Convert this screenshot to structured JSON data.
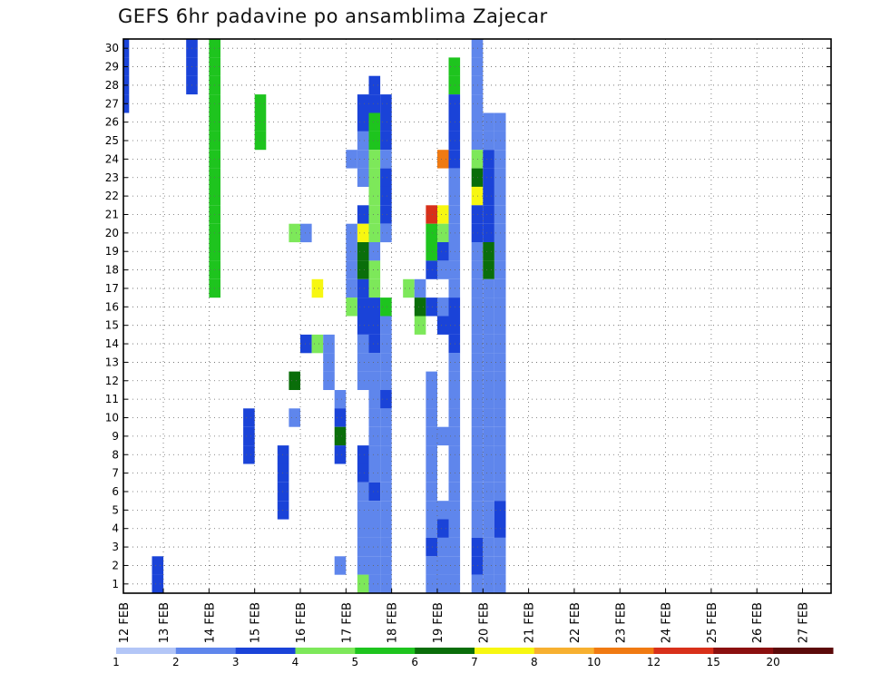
{
  "chart_data": {
    "type": "heatmap",
    "title": "GEFS 6hr padavine po ansamblima Zajecar",
    "xlabel": "",
    "ylabel": "",
    "x_ticks": [
      "12 FEB",
      "13 FEB",
      "14 FEB",
      "15 FEB",
      "16 FEB",
      "17 FEB",
      "18 FEB",
      "19 FEB",
      "20 FEB",
      "21 FEB",
      "22 FEB",
      "23 FEB",
      "24 FEB",
      "25 FEB",
      "26 FEB",
      "27 FEB"
    ],
    "y_ticks": [
      "1",
      "2",
      "3",
      "4",
      "5",
      "6",
      "7",
      "8",
      "9",
      "10",
      "11",
      "12",
      "13",
      "14",
      "15",
      "16",
      "17",
      "18",
      "19",
      "20",
      "21",
      "22",
      "23",
      "24",
      "25",
      "26",
      "27",
      "28",
      "29",
      "30"
    ],
    "x_range_steps": [
      0,
      61
    ],
    "y_range": [
      1,
      30
    ],
    "grid": true,
    "colorbar": {
      "labels": [
        "1",
        "2",
        "3",
        "4",
        "5",
        "6",
        "7",
        "8",
        "10",
        "12",
        "15",
        "20"
      ],
      "colors": [
        "#b3c6f7",
        "#5f86ec",
        "#1a43d8",
        "#7de85a",
        "#1ec41e",
        "#0a6e0a",
        "#f7f711",
        "#f7b030",
        "#f07a12",
        "#d8301a",
        "#8b0f0f",
        "#5c0a0a"
      ]
    },
    "cells": [
      [
        0,
        30,
        2
      ],
      [
        0,
        29,
        2
      ],
      [
        0,
        28,
        2
      ],
      [
        0,
        27,
        2
      ],
      [
        3,
        2,
        2
      ],
      [
        3,
        1,
        2
      ],
      [
        6,
        30,
        2
      ],
      [
        6,
        29,
        2
      ],
      [
        6,
        28,
        2
      ],
      [
        8,
        30,
        4
      ],
      [
        8,
        29,
        4
      ],
      [
        8,
        28,
        4
      ],
      [
        8,
        27,
        4
      ],
      [
        8,
        26,
        4
      ],
      [
        8,
        25,
        4
      ],
      [
        8,
        24,
        4
      ],
      [
        8,
        23,
        4
      ],
      [
        8,
        22,
        4
      ],
      [
        8,
        21,
        4
      ],
      [
        8,
        20,
        4
      ],
      [
        8,
        19,
        4
      ],
      [
        8,
        18,
        4
      ],
      [
        8,
        17,
        4
      ],
      [
        11,
        10,
        2
      ],
      [
        11,
        9,
        2
      ],
      [
        11,
        8,
        2
      ],
      [
        12,
        27,
        4
      ],
      [
        12,
        26,
        4
      ],
      [
        12,
        25,
        4
      ],
      [
        14,
        8,
        2
      ],
      [
        14,
        7,
        2
      ],
      [
        14,
        6,
        2
      ],
      [
        14,
        5,
        2
      ],
      [
        15,
        20,
        3
      ],
      [
        15,
        12,
        5
      ],
      [
        15,
        10,
        1
      ],
      [
        16,
        20,
        1
      ],
      [
        16,
        14,
        2
      ],
      [
        17,
        17,
        6
      ],
      [
        17,
        14,
        3
      ],
      [
        18,
        14,
        1
      ],
      [
        18,
        13,
        1
      ],
      [
        18,
        12,
        1
      ],
      [
        19,
        2,
        1
      ],
      [
        19,
        11,
        1
      ],
      [
        19,
        10,
        2
      ],
      [
        19,
        9,
        5
      ],
      [
        19,
        8,
        2
      ],
      [
        20,
        24,
        1
      ],
      [
        20,
        20,
        1
      ],
      [
        20,
        19,
        1
      ],
      [
        20,
        18,
        1
      ],
      [
        20,
        17,
        1
      ],
      [
        20,
        16,
        3
      ],
      [
        21,
        27,
        2
      ],
      [
        21,
        26,
        2
      ],
      [
        21,
        25,
        1
      ],
      [
        21,
        24,
        1
      ],
      [
        21,
        23,
        1
      ],
      [
        21,
        21,
        2
      ],
      [
        21,
        20,
        6
      ],
      [
        21,
        19,
        5
      ],
      [
        21,
        18,
        5
      ],
      [
        21,
        17,
        2
      ],
      [
        21,
        16,
        2
      ],
      [
        21,
        15,
        2
      ],
      [
        21,
        14,
        1
      ],
      [
        21,
        13,
        1
      ],
      [
        21,
        12,
        1
      ],
      [
        21,
        8,
        2
      ],
      [
        21,
        7,
        2
      ],
      [
        21,
        6,
        1
      ],
      [
        21,
        5,
        1
      ],
      [
        21,
        4,
        1
      ],
      [
        21,
        3,
        1
      ],
      [
        21,
        2,
        1
      ],
      [
        21,
        1,
        3
      ],
      [
        22,
        28,
        2
      ],
      [
        22,
        27,
        2
      ],
      [
        22,
        26,
        4
      ],
      [
        22,
        25,
        4
      ],
      [
        22,
        24,
        3
      ],
      [
        22,
        23,
        3
      ],
      [
        22,
        22,
        3
      ],
      [
        22,
        21,
        3
      ],
      [
        22,
        20,
        3
      ],
      [
        22,
        19,
        1
      ],
      [
        22,
        18,
        3
      ],
      [
        22,
        17,
        3
      ],
      [
        22,
        16,
        2
      ],
      [
        22,
        15,
        2
      ],
      [
        22,
        14,
        2
      ],
      [
        22,
        13,
        1
      ],
      [
        22,
        12,
        1
      ],
      [
        22,
        11,
        1
      ],
      [
        22,
        10,
        1
      ],
      [
        22,
        9,
        1
      ],
      [
        22,
        8,
        1
      ],
      [
        22,
        7,
        1
      ],
      [
        22,
        6,
        2
      ],
      [
        22,
        5,
        1
      ],
      [
        22,
        4,
        1
      ],
      [
        22,
        3,
        1
      ],
      [
        22,
        2,
        1
      ],
      [
        22,
        1,
        1
      ],
      [
        23,
        27,
        2
      ],
      [
        23,
        26,
        2
      ],
      [
        23,
        25,
        2
      ],
      [
        23,
        24,
        1
      ],
      [
        23,
        23,
        2
      ],
      [
        23,
        22,
        2
      ],
      [
        23,
        21,
        2
      ],
      [
        23,
        20,
        1
      ],
      [
        23,
        16,
        4
      ],
      [
        23,
        15,
        1
      ],
      [
        23,
        14,
        1
      ],
      [
        23,
        13,
        1
      ],
      [
        23,
        12,
        1
      ],
      [
        23,
        11,
        2
      ],
      [
        23,
        10,
        1
      ],
      [
        23,
        9,
        1
      ],
      [
        23,
        8,
        1
      ],
      [
        23,
        7,
        1
      ],
      [
        23,
        6,
        1
      ],
      [
        23,
        5,
        1
      ],
      [
        23,
        4,
        1
      ],
      [
        23,
        3,
        1
      ],
      [
        23,
        2,
        1
      ],
      [
        23,
        1,
        1
      ],
      [
        25,
        17,
        3
      ],
      [
        26,
        17,
        1
      ],
      [
        26,
        16,
        5
      ],
      [
        26,
        15,
        3
      ],
      [
        27,
        21,
        9
      ],
      [
        27,
        20,
        4
      ],
      [
        27,
        19,
        4
      ],
      [
        27,
        18,
        2
      ],
      [
        27,
        16,
        2
      ],
      [
        27,
        12,
        1
      ],
      [
        27,
        11,
        1
      ],
      [
        27,
        10,
        1
      ],
      [
        27,
        9,
        1
      ],
      [
        27,
        8,
        1
      ],
      [
        27,
        7,
        1
      ],
      [
        27,
        6,
        1
      ],
      [
        27,
        5,
        1
      ],
      [
        27,
        4,
        1
      ],
      [
        27,
        3,
        2
      ],
      [
        27,
        2,
        1
      ],
      [
        27,
        1,
        1
      ],
      [
        28,
        24,
        8
      ],
      [
        28,
        21,
        6
      ],
      [
        28,
        20,
        3
      ],
      [
        28,
        19,
        2
      ],
      [
        28,
        18,
        1
      ],
      [
        28,
        16,
        1
      ],
      [
        28,
        15,
        2
      ],
      [
        28,
        9,
        1
      ],
      [
        28,
        5,
        1
      ],
      [
        28,
        4,
        2
      ],
      [
        28,
        3,
        1
      ],
      [
        28,
        2,
        1
      ],
      [
        28,
        1,
        1
      ],
      [
        29,
        29,
        4
      ],
      [
        29,
        28,
        4
      ],
      [
        29,
        27,
        2
      ],
      [
        29,
        26,
        2
      ],
      [
        29,
        25,
        2
      ],
      [
        29,
        24,
        2
      ],
      [
        29,
        23,
        1
      ],
      [
        29,
        22,
        1
      ],
      [
        29,
        21,
        1
      ],
      [
        29,
        20,
        1
      ],
      [
        29,
        19,
        1
      ],
      [
        29,
        18,
        1
      ],
      [
        29,
        17,
        1
      ],
      [
        29,
        16,
        2
      ],
      [
        29,
        15,
        2
      ],
      [
        29,
        14,
        2
      ],
      [
        29,
        13,
        1
      ],
      [
        29,
        12,
        1
      ],
      [
        29,
        11,
        1
      ],
      [
        29,
        10,
        1
      ],
      [
        29,
        9,
        1
      ],
      [
        29,
        8,
        1
      ],
      [
        29,
        7,
        1
      ],
      [
        29,
        6,
        1
      ],
      [
        29,
        5,
        1
      ],
      [
        29,
        4,
        1
      ],
      [
        29,
        3,
        1
      ],
      [
        29,
        2,
        1
      ],
      [
        29,
        1,
        1
      ],
      [
        31,
        30,
        1
      ],
      [
        31,
        29,
        1
      ],
      [
        31,
        28,
        1
      ],
      [
        31,
        27,
        1
      ],
      [
        31,
        26,
        1
      ],
      [
        31,
        25,
        1
      ],
      [
        31,
        24,
        3
      ],
      [
        31,
        23,
        5
      ],
      [
        31,
        22,
        6
      ],
      [
        31,
        21,
        2
      ],
      [
        31,
        20,
        2
      ],
      [
        31,
        19,
        1
      ],
      [
        31,
        18,
        1
      ],
      [
        31,
        17,
        1
      ],
      [
        31,
        16,
        1
      ],
      [
        31,
        15,
        1
      ],
      [
        31,
        14,
        1
      ],
      [
        31,
        13,
        1
      ],
      [
        31,
        12,
        1
      ],
      [
        31,
        11,
        1
      ],
      [
        31,
        10,
        1
      ],
      [
        31,
        9,
        1
      ],
      [
        31,
        8,
        1
      ],
      [
        31,
        7,
        1
      ],
      [
        31,
        6,
        1
      ],
      [
        31,
        5,
        1
      ],
      [
        31,
        4,
        1
      ],
      [
        31,
        3,
        2
      ],
      [
        31,
        2,
        2
      ],
      [
        31,
        1,
        1
      ],
      [
        32,
        26,
        1
      ],
      [
        32,
        25,
        1
      ],
      [
        32,
        24,
        2
      ],
      [
        32,
        23,
        2
      ],
      [
        32,
        22,
        2
      ],
      [
        32,
        21,
        2
      ],
      [
        32,
        20,
        2
      ],
      [
        32,
        19,
        5
      ],
      [
        32,
        18,
        5
      ],
      [
        32,
        17,
        1
      ],
      [
        32,
        16,
        1
      ],
      [
        32,
        15,
        1
      ],
      [
        32,
        14,
        1
      ],
      [
        32,
        13,
        1
      ],
      [
        32,
        12,
        1
      ],
      [
        32,
        11,
        1
      ],
      [
        32,
        10,
        1
      ],
      [
        32,
        9,
        1
      ],
      [
        32,
        8,
        1
      ],
      [
        32,
        7,
        1
      ],
      [
        32,
        6,
        1
      ],
      [
        32,
        5,
        1
      ],
      [
        32,
        4,
        1
      ],
      [
        32,
        3,
        1
      ],
      [
        32,
        2,
        1
      ],
      [
        32,
        1,
        1
      ],
      [
        33,
        26,
        1
      ],
      [
        33,
        25,
        1
      ],
      [
        33,
        24,
        1
      ],
      [
        33,
        23,
        1
      ],
      [
        33,
        22,
        1
      ],
      [
        33,
        21,
        1
      ],
      [
        33,
        20,
        1
      ],
      [
        33,
        19,
        1
      ],
      [
        33,
        18,
        1
      ],
      [
        33,
        17,
        1
      ],
      [
        33,
        16,
        1
      ],
      [
        33,
        15,
        1
      ],
      [
        33,
        14,
        1
      ],
      [
        33,
        13,
        1
      ],
      [
        33,
        12,
        1
      ],
      [
        33,
        11,
        1
      ],
      [
        33,
        10,
        1
      ],
      [
        33,
        9,
        1
      ],
      [
        33,
        8,
        1
      ],
      [
        33,
        7,
        1
      ],
      [
        33,
        6,
        1
      ],
      [
        33,
        5,
        2
      ],
      [
        33,
        4,
        2
      ],
      [
        33,
        3,
        1
      ],
      [
        33,
        2,
        1
      ],
      [
        33,
        1,
        1
      ]
    ]
  }
}
